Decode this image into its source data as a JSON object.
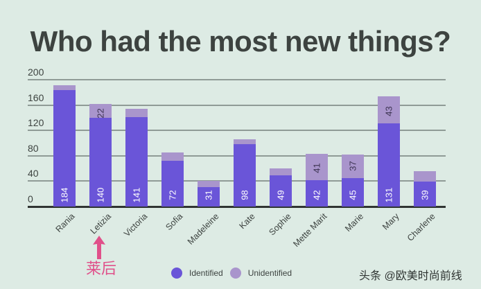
{
  "title": "Who had the most new things?",
  "annotation": {
    "text": "莱后",
    "target": "Letizia",
    "color": "#e0508a"
  },
  "legend": {
    "identified": "Identified",
    "unidentified": "Unidentified"
  },
  "watermark": "头条 @欧美时尚前线",
  "colors": {
    "background": "#ddebe4",
    "identified": "#6a55d8",
    "unidentified": "#a995cc",
    "title": "#3d4340"
  },
  "y_ticks": [
    "0",
    "40",
    "80",
    "120",
    "160",
    "200"
  ],
  "chart_data": {
    "type": "bar",
    "stacked": true,
    "title": "Who had the most new things?",
    "xlabel": "",
    "ylabel": "",
    "ylim": [
      0,
      200
    ],
    "yticks": [
      0,
      40,
      80,
      120,
      160,
      200
    ],
    "grid": true,
    "legend_position": "bottom",
    "categories": [
      "Rania",
      "Letizia",
      "Victoria",
      "Sofia",
      "Madeleine",
      "Kate",
      "Sophie",
      "Mette Marit",
      "Marie",
      "Mary",
      "Charlene"
    ],
    "series": [
      {
        "name": "Identified",
        "color": "#6a55d8",
        "values": [
          184,
          140,
          141,
          72,
          31,
          98,
          49,
          42,
          45,
          131,
          39
        ],
        "labels_shown": [
          true,
          true,
          true,
          true,
          true,
          true,
          true,
          true,
          true,
          true,
          true
        ]
      },
      {
        "name": "Unidentified",
        "color": "#a995cc",
        "values": [
          7,
          22,
          13,
          13,
          9,
          8,
          11,
          41,
          37,
          43,
          17
        ],
        "labels_shown": [
          false,
          true,
          false,
          false,
          false,
          false,
          false,
          true,
          true,
          true,
          false
        ]
      }
    ]
  }
}
